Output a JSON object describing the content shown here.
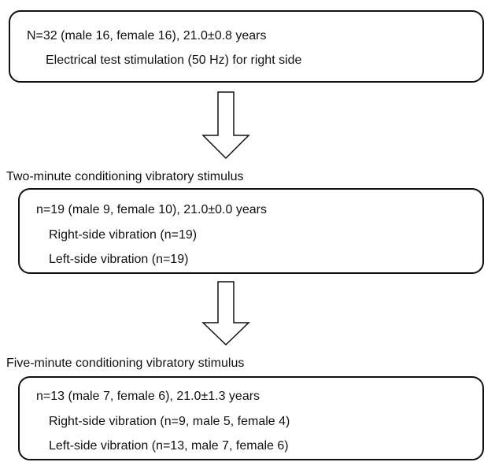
{
  "boxes": [
    {
      "lines": [
        "N=32 (male 16, female 16), 21.0±0.8 years",
        "Electrical test stimulation (50 Hz) for right side"
      ]
    },
    {
      "lines": [
        "n=19 (male 9, female 10), 21.0±0.0 years",
        "Right-side vibration (n=19)",
        "Left-side vibration (n=19)"
      ]
    },
    {
      "lines": [
        "n=13 (male 7, female 6), 21.0±1.3 years",
        "Right-side vibration (n=9, male 5, female 4)",
        "Left-side vibration (n=13, male 7, female 6)"
      ]
    }
  ],
  "labels": [
    "Two-minute conditioning vibratory stimulus",
    "Five-minute conditioning vibratory stimulus"
  ]
}
